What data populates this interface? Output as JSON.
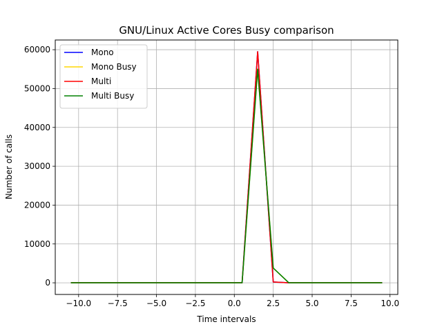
{
  "chart_data": {
    "type": "line",
    "title": "GNU/Linux Active Cores Busy comparison",
    "xlabel": "Time intervals",
    "ylabel": "Number of calls",
    "xlim": [
      -11.5,
      10.5
    ],
    "ylim": [
      -3000,
      62500
    ],
    "xticks": [
      -10,
      -7.5,
      -5,
      -2.5,
      0,
      2.5,
      5,
      7.5,
      10
    ],
    "xtick_labels": [
      "−10.0",
      "−7.5",
      "−5.0",
      "−2.5",
      "0.0",
      "2.5",
      "5.0",
      "7.5",
      "10.0"
    ],
    "yticks": [
      0,
      10000,
      20000,
      30000,
      40000,
      50000,
      60000
    ],
    "ytick_labels": [
      "0",
      "10000",
      "20000",
      "30000",
      "40000",
      "50000",
      "60000"
    ],
    "grid": true,
    "legend_position": "top-left",
    "x": [
      -10.5,
      -9.5,
      -8.5,
      -7.5,
      -6.5,
      -5.5,
      -4.5,
      -3.5,
      -2.5,
      -1.5,
      -0.5,
      0.5,
      1.5,
      2.5,
      3.5,
      4.5,
      5.5,
      6.5,
      7.5,
      8.5,
      9.5
    ],
    "series": [
      {
        "name": "Mono",
        "color": "#0000ff",
        "values": [
          0,
          0,
          0,
          0,
          0,
          0,
          0,
          0,
          0,
          0,
          0,
          0,
          59500,
          200,
          0,
          0,
          0,
          0,
          0,
          0,
          0
        ]
      },
      {
        "name": "Mono Busy",
        "color": "#ffd700",
        "values": [
          0,
          0,
          0,
          0,
          0,
          0,
          0,
          0,
          0,
          0,
          0,
          0,
          55000,
          3800,
          0,
          0,
          0,
          0,
          0,
          0,
          0
        ]
      },
      {
        "name": "Multi",
        "color": "#ff0000",
        "values": [
          0,
          0,
          0,
          0,
          0,
          0,
          0,
          0,
          0,
          0,
          0,
          0,
          59500,
          200,
          0,
          0,
          0,
          0,
          0,
          0,
          0
        ]
      },
      {
        "name": "Multi Busy",
        "color": "#008000",
        "values": [
          0,
          0,
          0,
          0,
          0,
          0,
          0,
          0,
          0,
          0,
          0,
          0,
          55000,
          3800,
          0,
          0,
          0,
          0,
          0,
          0,
          0
        ]
      }
    ]
  }
}
